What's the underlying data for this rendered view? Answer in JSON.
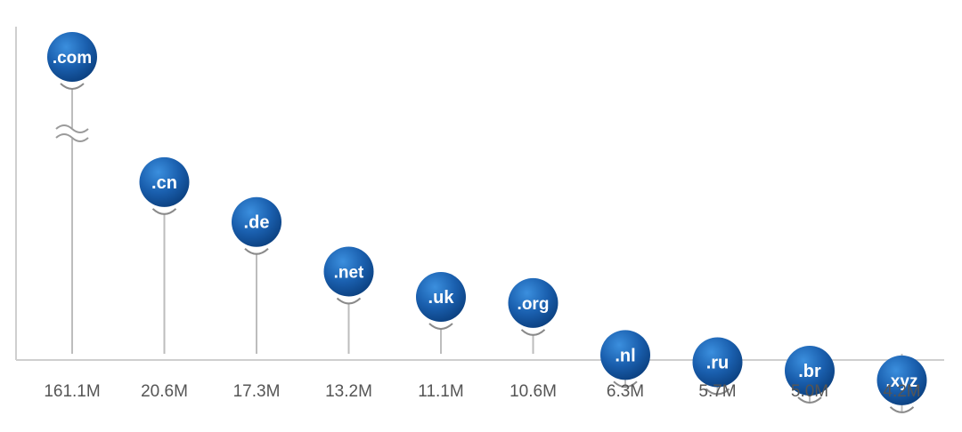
{
  "chart_data": {
    "type": "lollipop",
    "categories": [
      ".com",
      ".cn",
      ".de",
      ".net",
      ".uk",
      ".org",
      ".nl",
      ".ru",
      ".br",
      ".xyz"
    ],
    "values": [
      161.1,
      20.6,
      17.3,
      13.2,
      11.1,
      10.6,
      6.3,
      5.7,
      5.0,
      4.2
    ],
    "value_labels": [
      "161.1M",
      "20.6M",
      "17.3M",
      "13.2M",
      "11.1M",
      "10.6M",
      "6.3M",
      "5.7M",
      "5.0M",
      "4.2M"
    ],
    "unit": "M",
    "axis_break": true,
    "xlabel": "",
    "ylabel": "",
    "grid": false
  },
  "colors": {
    "bubble_light": "#2a7fd0",
    "bubble_dark": "#0b3f7e",
    "stem": "#bdbdbd",
    "axis": "#cfcfcf",
    "value_text": "#555555",
    "tld_text": "#ffffff"
  }
}
